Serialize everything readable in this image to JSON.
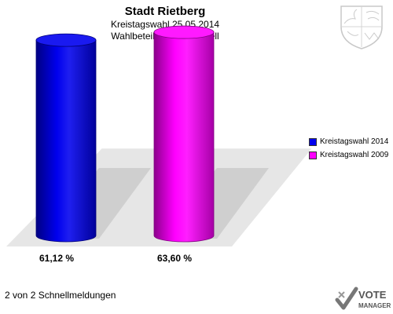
{
  "header": {
    "title": "Stadt Rietberg",
    "subtitle_1": "Kreistagswahl 25.05.2014",
    "subtitle_2": "Wahlbeteiligung Varensell"
  },
  "footer": {
    "text": "2 von 2 Schnellmeldungen",
    "brand_top": "VOTE",
    "brand_bottom": "MANAGER"
  },
  "colors": {
    "series_2014": "#0000ee",
    "series_2009": "#ff00ff",
    "shadow": "#d2d2d2"
  },
  "chart_data": {
    "type": "bar",
    "title": "Stadt Rietberg",
    "subtitle": [
      "Kreistagswahl 25.05.2014",
      "Wahlbeteiligung Varensell"
    ],
    "categories": [
      "Kreistagswahl 2014",
      "Kreistagswahl 2009"
    ],
    "values": [
      61.12,
      63.6
    ],
    "labels": [
      "61,12 %",
      "63,60 %"
    ],
    "legend": [
      "Kreistagswahl 2014",
      "Kreistagswahl 2009"
    ],
    "legend_position": "right",
    "ylim": [
      0,
      70
    ],
    "grid": false,
    "style": "3d-cylinder"
  }
}
